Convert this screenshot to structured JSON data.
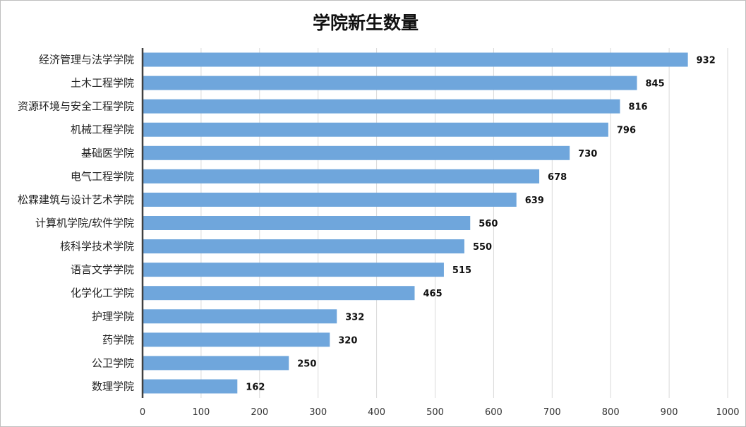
{
  "chart_data": {
    "type": "bar",
    "orientation": "horizontal",
    "title": "学院新生数量",
    "xlabel": "",
    "ylabel": "",
    "xlim": [
      0,
      1000
    ],
    "xticks": [
      0,
      100,
      200,
      300,
      400,
      500,
      600,
      700,
      800,
      900,
      1000
    ],
    "grid": true,
    "categories": [
      "经济管理与法学学院",
      "土木工程学院",
      "资源环境与安全工程学院",
      "机械工程学院",
      "基础医学院",
      "电气工程学院",
      "松霖建筑与设计艺术学院",
      "计算机学院/软件学院",
      "核科学技术学院",
      "语言文学学院",
      "化学化工学院",
      "护理学院",
      "药学院",
      "公卫学院",
      "数理学院"
    ],
    "values": [
      932,
      845,
      816,
      796,
      730,
      678,
      639,
      560,
      550,
      515,
      465,
      332,
      320,
      250,
      162
    ],
    "bar_color": "#6fa6dc",
    "grid_color": "#d9d9d9",
    "axis_color": "#404040"
  }
}
